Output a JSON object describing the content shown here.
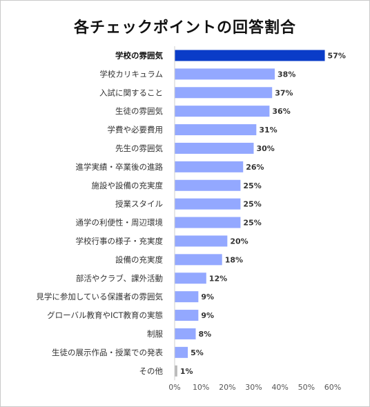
{
  "chart_data": {
    "type": "bar",
    "orientation": "horizontal",
    "title": "各チェックポイントの回答割合",
    "categories": [
      "学校の雰囲気",
      "学校カリキュラム",
      "入試に関すること",
      "生徒の雰囲気",
      "学費や必要費用",
      "先生の雰囲気",
      "進学実績・卒業後の進路",
      "施設や設備の充実度",
      "授業スタイル",
      "通学の利便性・周辺環境",
      "学校行事の様子・充実度",
      "設備の充実度",
      "部活やクラブ、課外活動",
      "見学に参加している保護者の雰囲気",
      "グローバル教育やICT教育の実態",
      "制服",
      "生徒の展示作品・授業での発表",
      "その他"
    ],
    "values": [
      57,
      38,
      37,
      36,
      31,
      30,
      26,
      25,
      25,
      25,
      20,
      18,
      12,
      9,
      9,
      8,
      5,
      1
    ],
    "value_labels": [
      "57%",
      "38%",
      "37%",
      "36%",
      "31%",
      "30%",
      "26%",
      "25%",
      "25%",
      "25%",
      "20%",
      "18%",
      "12%",
      "9%",
      "9%",
      "8%",
      "5%",
      "1%"
    ],
    "xlim": [
      0,
      60
    ],
    "xticks": [
      "0%",
      "10%",
      "20%",
      "30%",
      "40%",
      "50%",
      "60%"
    ],
    "grid": false,
    "legend": "none",
    "colors": {
      "highlight": "#0a3cc8",
      "bar": "#93a8ff",
      "other": "#b8b8b8"
    }
  }
}
